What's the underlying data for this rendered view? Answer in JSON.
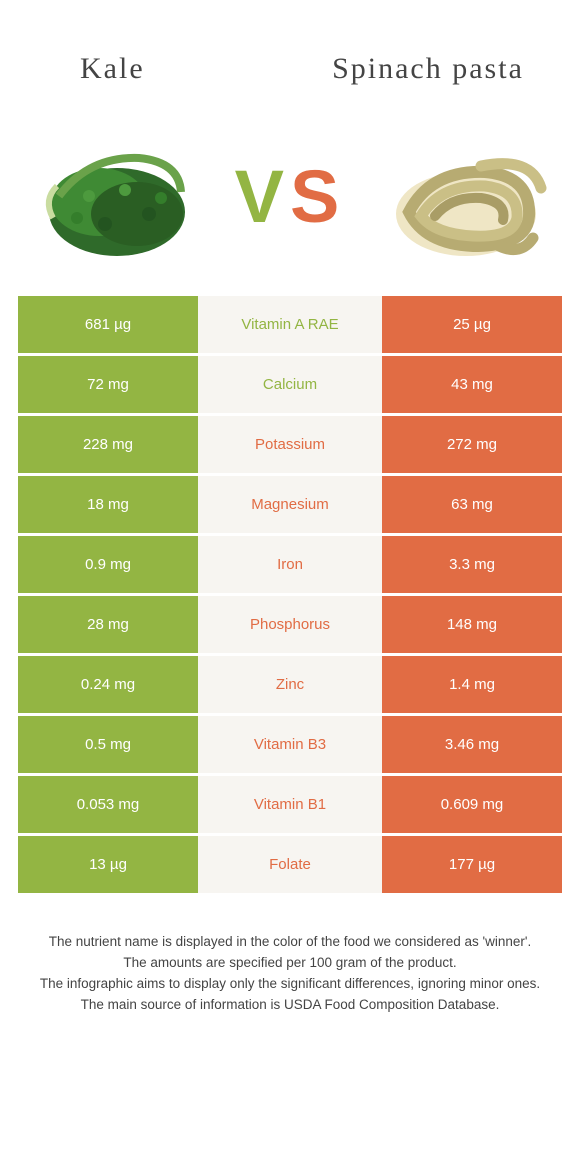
{
  "header": {
    "left_title": "Kale",
    "right_title": "Spinach pasta",
    "vs_v": "V",
    "vs_s": "S"
  },
  "colors": {
    "left_bg": "#93b543",
    "right_bg": "#e16c44",
    "mid_bg": "#f7f5f1",
    "left_text": "#93b543",
    "right_text": "#e16c44",
    "value_text": "#ffffff",
    "vs_v_color": "#93b543",
    "vs_s_color": "#e16c44"
  },
  "rows": [
    {
      "left": "681 µg",
      "name": "Vitamin A RAE",
      "right": "25 µg",
      "winner": "left"
    },
    {
      "left": "72 mg",
      "name": "Calcium",
      "right": "43 mg",
      "winner": "left"
    },
    {
      "left": "228 mg",
      "name": "Potassium",
      "right": "272 mg",
      "winner": "right"
    },
    {
      "left": "18 mg",
      "name": "Magnesium",
      "right": "63 mg",
      "winner": "right"
    },
    {
      "left": "0.9 mg",
      "name": "Iron",
      "right": "3.3 mg",
      "winner": "right"
    },
    {
      "left": "28 mg",
      "name": "Phosphorus",
      "right": "148 mg",
      "winner": "right"
    },
    {
      "left": "0.24 mg",
      "name": "Zinc",
      "right": "1.4 mg",
      "winner": "right"
    },
    {
      "left": "0.5 mg",
      "name": "Vitamin B3",
      "right": "3.46 mg",
      "winner": "right"
    },
    {
      "left": "0.053 mg",
      "name": "Vitamin B1",
      "right": "0.609 mg",
      "winner": "right"
    },
    {
      "left": "13 µg",
      "name": "Folate",
      "right": "177 µg",
      "winner": "right"
    }
  ],
  "footer": {
    "line1": "The nutrient name is displayed in the color of the food we considered as 'winner'.",
    "line2": "The amounts are specified per 100 gram of the product.",
    "line3": "The infographic aims to display only the significant differences, ignoring minor ones.",
    "line4": "The main source of information is USDA Food Composition Database."
  }
}
